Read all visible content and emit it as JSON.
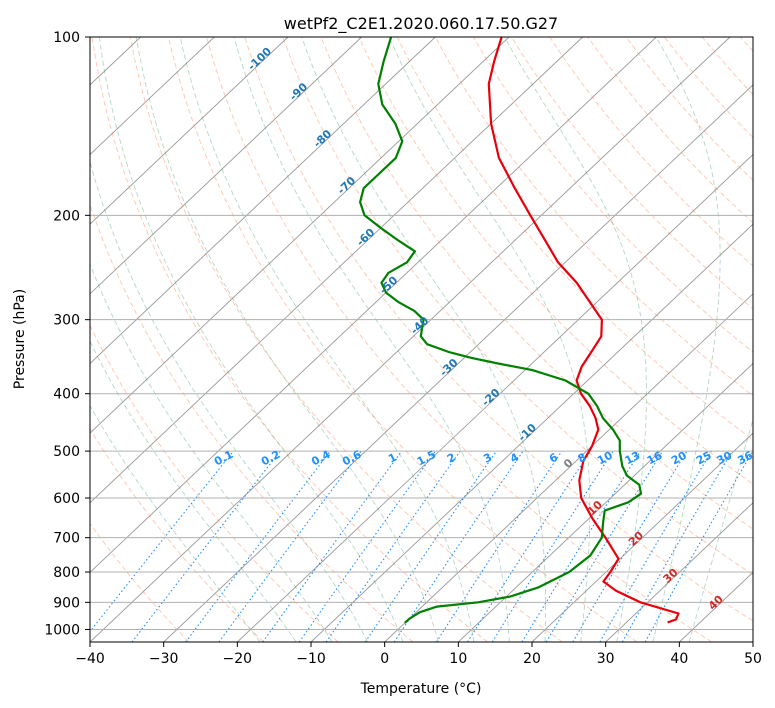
{
  "chart_data": {
    "type": "line",
    "title": "wetPf2_C2E1.2020.060.17.50.G27",
    "xlabel": "Temperature (°C)",
    "ylabel": "Pressure (hPa)",
    "xlim": [
      -40,
      50
    ],
    "ylim_pressure": [
      1050,
      100
    ],
    "y_scale": "log",
    "x_ticks": [
      -40,
      -30,
      -20,
      -10,
      0,
      10,
      20,
      30,
      40,
      50
    ],
    "x_tick_labels": [
      "−40",
      "−30",
      "−20",
      "−10",
      "0",
      "10",
      "20",
      "30",
      "40",
      "50"
    ],
    "y_ticks": [
      100,
      200,
      300,
      400,
      500,
      600,
      700,
      800,
      900,
      1000
    ],
    "y_tick_labels": [
      "100",
      "200",
      "300",
      "400",
      "500",
      "600",
      "700",
      "800",
      "900",
      "1000"
    ],
    "grid": true,
    "colors": {
      "temperature": "#e8000b",
      "dewpoint": "#008000",
      "isotherm": "#999999",
      "dry_adiabat": "#ff7f50",
      "moist_adiabat": "#2e8b57",
      "mixing_ratio": "#1e90ff",
      "isotherm_label": "#1f77b4",
      "mixing_label": "#1e90ff",
      "zero_label": "#808080",
      "warm_label": "#d62728"
    },
    "series": [
      {
        "key": "temperature",
        "pressure": [
          973,
          962,
          940,
          900,
          860,
          830,
          800,
          760,
          700,
          650,
          600,
          560,
          520,
          490,
          460,
          440,
          420,
          400,
          380,
          360,
          340,
          320,
          300,
          280,
          260,
          240,
          220,
          200,
          180,
          160,
          140,
          120,
          110,
          100
        ],
        "values": [
          35.6,
          36.3,
          35.8,
          29.0,
          24.0,
          21.0,
          20.6,
          19.8,
          15.0,
          10.5,
          6.0,
          3.2,
          1.0,
          0.0,
          -1.5,
          -3.5,
          -6.0,
          -9.0,
          -11.5,
          -12.8,
          -13.6,
          -14.5,
          -16.8,
          -21.0,
          -25.5,
          -31.0,
          -36.0,
          -41.5,
          -47.5,
          -54.0,
          -60.0,
          -66.0,
          -68.5,
          -71.0
        ]
      },
      {
        "key": "dewpoint",
        "pressure": [
          975,
          960,
          935,
          915,
          900,
          880,
          850,
          800,
          750,
          700,
          660,
          630,
          610,
          590,
          570,
          550,
          530,
          500,
          480,
          460,
          440,
          420,
          400,
          380,
          365,
          355,
          348,
          340,
          330,
          320,
          310,
          300,
          290,
          280,
          270,
          260,
          250,
          240,
          230,
          220,
          210,
          200,
          190,
          180,
          170,
          160,
          150,
          140,
          130,
          120,
          110,
          100
        ],
        "values": [
          0.0,
          0.0,
          0.5,
          2.0,
          7.0,
          10.5,
          13.0,
          15.0,
          15.5,
          14.5,
          12.5,
          11.0,
          13.0,
          13.5,
          12.0,
          9.0,
          7.0,
          4.5,
          3.0,
          0.5,
          -2.5,
          -5.0,
          -8.0,
          -13.0,
          -19.0,
          -25.0,
          -29.0,
          -33.0,
          -37.0,
          -39.0,
          -40.0,
          -41.0,
          -43.5,
          -47.0,
          -50.0,
          -52.0,
          -52.5,
          -51.5,
          -52.0,
          -56.0,
          -60.0,
          -64.0,
          -66.5,
          -68.0,
          -68.0,
          -68.0,
          -69.5,
          -73.0,
          -77.5,
          -81.0,
          -83.5,
          -86.0
        ]
      }
    ],
    "isotherm_labels": [
      {
        "text": "-100",
        "t": -100,
        "p": 110
      },
      {
        "text": "-90",
        "t": -90,
        "p": 125
      },
      {
        "text": "-80",
        "t": -80,
        "p": 150
      },
      {
        "text": "-70",
        "t": -70,
        "p": 180
      },
      {
        "text": "-60",
        "t": -60,
        "p": 220
      },
      {
        "text": "-50",
        "t": -50,
        "p": 265
      },
      {
        "text": "-40",
        "t": -40,
        "p": 310
      },
      {
        "text": "-30",
        "t": -30,
        "p": 365
      },
      {
        "text": "-20",
        "t": -20,
        "p": 410
      },
      {
        "text": "-10",
        "t": -10,
        "p": 470
      },
      {
        "text": "0",
        "t": 0,
        "p": 530
      },
      {
        "text": "10",
        "t": 10,
        "p": 630
      },
      {
        "text": "20",
        "t": 20,
        "p": 710
      },
      {
        "text": "30",
        "t": 30,
        "p": 820
      },
      {
        "text": "40",
        "t": 40,
        "p": 910
      }
    ],
    "mixing_ratios": [
      0.1,
      0.2,
      0.4,
      0.6,
      1,
      1.5,
      2,
      3,
      4,
      6,
      8,
      10,
      13,
      16,
      20,
      25,
      30,
      36
    ],
    "mixing_ratio_labels": [
      "0.1",
      "0.2",
      "0.4",
      "0.6",
      "1",
      "1.5",
      "2",
      "3",
      "4",
      "6",
      "8",
      "10",
      "13",
      "16",
      "20",
      "25",
      "30",
      "36"
    ]
  }
}
